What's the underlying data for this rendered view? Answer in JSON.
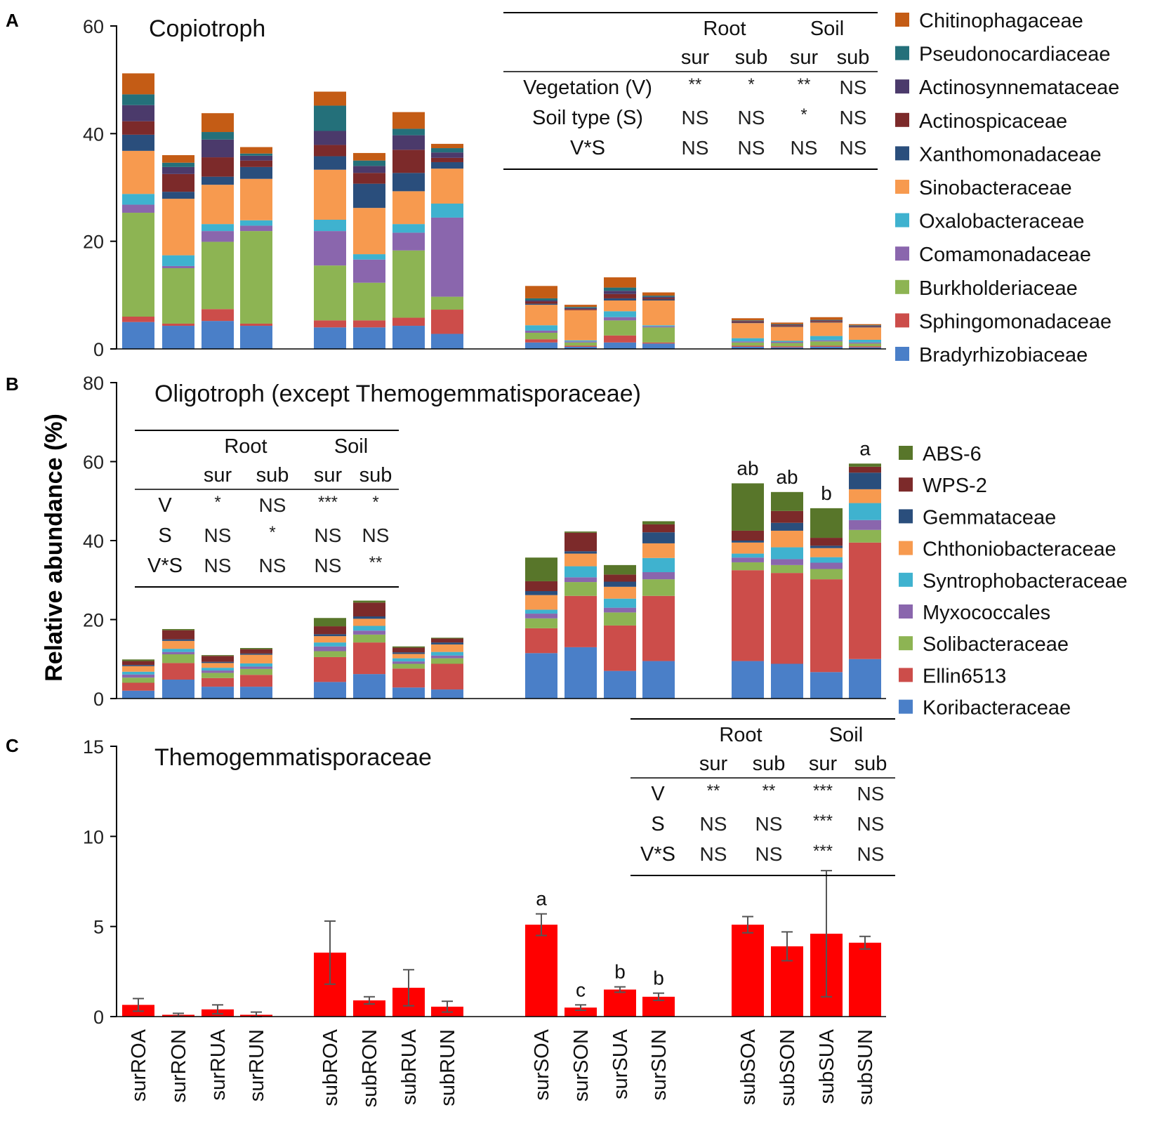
{
  "figure": {
    "ylabel": "Relative abundance (%)"
  },
  "colors": {
    "axis": "#000000",
    "errorbar": "#555555",
    "bar_c": "#ff0000"
  },
  "chart_data": [
    {
      "id": "A",
      "panel_label": "A",
      "type": "bar",
      "stacked": true,
      "title": "Copiotroph",
      "ylim": [
        0,
        60
      ],
      "yticks": [
        0,
        20,
        40,
        60
      ],
      "categories": [
        "surROA",
        "surRON",
        "surRUA",
        "surRUN",
        "subROA",
        "subRON",
        "subRUA",
        "subRUN",
        "surSOA",
        "surSON",
        "surSUA",
        "surSUN",
        "subSOA",
        "subSON",
        "subSUA",
        "subSUN"
      ],
      "series": [
        {
          "name": "Bradyrhizobiaceae",
          "color": "#4a7fc8",
          "values": [
            5,
            4.3,
            5.2,
            4.3,
            4,
            4,
            4.3,
            2.8,
            1.2,
            0.4,
            1.2,
            1,
            0.4,
            0.3,
            0.4,
            0.3
          ]
        },
        {
          "name": "Sphingomonadaceae",
          "color": "#cc4d4a",
          "values": [
            1,
            0.4,
            2.2,
            0.4,
            1.3,
            1.3,
            1.5,
            4.5,
            0.6,
            0.2,
            1.3,
            0.2,
            0.2,
            0.2,
            0.2,
            0.2
          ]
        },
        {
          "name": "Burkholderiaceae",
          "color": "#8db453",
          "values": [
            19.3,
            10.3,
            12.5,
            17.2,
            10.2,
            7,
            12.5,
            2.4,
            1.2,
            0.6,
            2.8,
            2.8,
            0.6,
            0.6,
            0.8,
            0.5
          ]
        },
        {
          "name": "Comamonadaceae",
          "color": "#8a66ad",
          "values": [
            1.5,
            0.4,
            2,
            1,
            6.4,
            4.3,
            3.3,
            14.7,
            0.4,
            0.2,
            0.6,
            0.2,
            0.2,
            0.2,
            0.2,
            0.2
          ]
        },
        {
          "name": "Oxalobacteraceae",
          "color": "#3fb2cf",
          "values": [
            2,
            2,
            1.3,
            1,
            2.1,
            1,
            1.6,
            2.6,
            1,
            0.2,
            1.1,
            0.2,
            0.6,
            0.2,
            0.8,
            0.5
          ]
        },
        {
          "name": "Sinobacteraceae",
          "color": "#f79a4f",
          "values": [
            8,
            10.5,
            7.3,
            7.7,
            9.3,
            8.6,
            6.1,
            6.5,
            3.8,
            5.6,
            2,
            4.6,
            2.8,
            2.6,
            2.5,
            2.3
          ]
        },
        {
          "name": "Xanthomonadaceae",
          "color": "#2a4e7c",
          "values": [
            3,
            1.3,
            1.5,
            2.2,
            2.5,
            4.5,
            3.4,
            1.2,
            0.2,
            0,
            0.4,
            0.2,
            0.1,
            0.1,
            0.1,
            0.1
          ]
        },
        {
          "name": "Actinospicaceae",
          "color": "#7c2a2a",
          "values": [
            2.5,
            3.3,
            3.6,
            1.2,
            2.1,
            2,
            4.3,
            0.8,
            0.4,
            0.2,
            0.8,
            0.3,
            0.2,
            0.2,
            0.2,
            0.1
          ]
        },
        {
          "name": "Actinosynnemataceae",
          "color": "#4b3a6b",
          "values": [
            3,
            1.3,
            3.3,
            0.9,
            2.6,
            1.3,
            2.7,
            1,
            0.2,
            0.2,
            0.6,
            0.2,
            0.1,
            0.1,
            0.1,
            0.1
          ]
        },
        {
          "name": "Pseudonocardiaceae",
          "color": "#24707a",
          "values": [
            2,
            0.8,
            1.4,
            0.4,
            4.7,
            1,
            1.2,
            0.8,
            0.4,
            0.2,
            0.6,
            0.2,
            0.1,
            0.1,
            0.1,
            0.1
          ]
        },
        {
          "name": "Chitinophagaceae",
          "color": "#c45c15",
          "values": [
            3.9,
            1.4,
            3.5,
            1.2,
            2.6,
            1.4,
            3.1,
            0.8,
            2.3,
            0.4,
            1.9,
            0.6,
            0.4,
            0.3,
            0.5,
            0.2
          ]
        }
      ],
      "annotations": [],
      "stats_table": {
        "group_headers": [
          "Root",
          "Soil"
        ],
        "sub_headers": [
          "sur",
          "sub",
          "sur",
          "sub"
        ],
        "rows": [
          {
            "label": "Vegetation (V)",
            "cells": [
              "**",
              "*",
              "**",
              "NS"
            ]
          },
          {
            "label": "Soil type (S)",
            "cells": [
              "NS",
              "NS",
              "*",
              "NS"
            ]
          },
          {
            "label": "V*S",
            "cells": [
              "NS",
              "NS",
              "NS",
              "NS"
            ]
          }
        ]
      }
    },
    {
      "id": "B",
      "panel_label": "B",
      "type": "bar",
      "stacked": true,
      "title": "Oligotroph (except Themogemmatisporaceae)",
      "ylim": [
        0,
        80
      ],
      "yticks": [
        0,
        20,
        40,
        60,
        80
      ],
      "categories": [
        "surROA",
        "surRON",
        "surRUA",
        "surRUN",
        "subROA",
        "subRON",
        "subRUA",
        "subRUN",
        "surSOA",
        "surSON",
        "surSUA",
        "surSUN",
        "subSOA",
        "subSON",
        "subSUA",
        "subSUN"
      ],
      "series": [
        {
          "name": "Koribacteraceae",
          "color": "#4a7fc8",
          "values": [
            2,
            4.8,
            3,
            3,
            4.2,
            6.2,
            2.8,
            2.3,
            11.5,
            13,
            7,
            9.5,
            9.5,
            8.8,
            6.7,
            10
          ]
        },
        {
          "name": "Ellin6513",
          "color": "#cc4d4a",
          "values": [
            2,
            4.2,
            2.2,
            3,
            6.3,
            8,
            4.8,
            6.5,
            6.3,
            13,
            11.5,
            16.5,
            23,
            23,
            23.5,
            29.5
          ]
        },
        {
          "name": "Solibacteraceae",
          "color": "#8db453",
          "values": [
            1.3,
            2.2,
            1.3,
            1.5,
            1.5,
            2,
            1.2,
            1.4,
            2.5,
            3.5,
            3.3,
            4.2,
            2,
            2,
            2.6,
            3.2
          ]
        },
        {
          "name": "Myxococcales",
          "color": "#8a66ad",
          "values": [
            0.8,
            0.6,
            0.6,
            0.6,
            1.2,
            1,
            0.6,
            0.7,
            1.2,
            1.2,
            1.2,
            1.8,
            1.2,
            1.5,
            1.6,
            2.5
          ]
        },
        {
          "name": "Syntrophobacteraceae",
          "color": "#3fb2cf",
          "values": [
            0.7,
            0.8,
            0.7,
            0.8,
            1,
            1.2,
            0.8,
            0.9,
            1,
            2.8,
            2.3,
            3.6,
            1,
            3,
            1.4,
            4.3
          ]
        },
        {
          "name": "Chthoniobacteraceae",
          "color": "#f79a4f",
          "values": [
            1.4,
            2,
            1.2,
            2.2,
            1.6,
            1.8,
            1.1,
            1.9,
            3.7,
            3.2,
            3,
            3.7,
            2.8,
            4.2,
            2.3,
            3.5
          ]
        },
        {
          "name": "Gemmataceae",
          "color": "#2a4e7c",
          "values": [
            0.3,
            0.4,
            0.3,
            0.3,
            0.5,
            0.6,
            0.4,
            0.5,
            1,
            0.6,
            1.3,
            2.8,
            0.5,
            2,
            0.6,
            4.2
          ]
        },
        {
          "name": "WPS-2",
          "color": "#7c2a2a",
          "values": [
            1,
            2.3,
            1.5,
            1.1,
            2,
            3.5,
            1.2,
            1,
            2.5,
            4.7,
            1.8,
            2,
            2.5,
            3,
            2,
            1.5
          ]
        },
        {
          "name": "ABS-6",
          "color": "#58762a",
          "values": [
            0.4,
            0.3,
            0.2,
            0.3,
            2.1,
            0.5,
            0.3,
            0.2,
            6,
            0.3,
            2.4,
            0.8,
            12,
            4.8,
            7.5,
            0.8
          ]
        }
      ],
      "annotations": [
        {
          "category": "subSOA",
          "text": "ab"
        },
        {
          "category": "subSON",
          "text": "ab"
        },
        {
          "category": "subSUA",
          "text": "b"
        },
        {
          "category": "subSUN",
          "text": "a"
        }
      ],
      "stats_table": {
        "group_headers": [
          "Root",
          "Soil"
        ],
        "sub_headers": [
          "sur",
          "sub",
          "sur",
          "sub"
        ],
        "rows": [
          {
            "label": "V",
            "cells": [
              "*",
              "NS",
              "***",
              "*"
            ]
          },
          {
            "label": "S",
            "cells": [
              "NS",
              "*",
              "NS",
              "NS"
            ]
          },
          {
            "label": "V*S",
            "cells": [
              "NS",
              "NS",
              "NS",
              "**"
            ]
          }
        ]
      }
    },
    {
      "id": "C",
      "panel_label": "C",
      "type": "bar",
      "stacked": false,
      "title": "Themogemmatisporaceae",
      "ylim": [
        0,
        15
      ],
      "yticks": [
        0,
        5,
        10,
        15
      ],
      "categories": [
        "surROA",
        "surRON",
        "surRUA",
        "surRUN",
        "subROA",
        "subRON",
        "subRUA",
        "subRUN",
        "surSOA",
        "surSON",
        "surSUA",
        "surSUN",
        "subSOA",
        "subSON",
        "subSUA",
        "subSUN"
      ],
      "values": [
        0.65,
        0.1,
        0.4,
        0.1,
        3.55,
        0.9,
        1.6,
        0.55,
        5.1,
        0.5,
        1.5,
        1.1,
        5.1,
        3.9,
        4.6,
        4.1
      ],
      "errors": [
        0.35,
        0.08,
        0.25,
        0.15,
        1.75,
        0.2,
        1,
        0.3,
        0.6,
        0.15,
        0.15,
        0.2,
        0.45,
        0.8,
        3.5,
        0.35
      ],
      "annotations": [
        {
          "category": "surSOA",
          "text": "a"
        },
        {
          "category": "surSON",
          "text": "c"
        },
        {
          "category": "surSUA",
          "text": "b"
        },
        {
          "category": "surSUN",
          "text": "b"
        }
      ],
      "stats_table": {
        "group_headers": [
          "Root",
          "Soil"
        ],
        "sub_headers": [
          "sur",
          "sub",
          "sur",
          "sub"
        ],
        "rows": [
          {
            "label": "V",
            "cells": [
              "**",
              "**",
              "***",
              "NS"
            ]
          },
          {
            "label": "S",
            "cells": [
              "NS",
              "NS",
              "***",
              "NS"
            ]
          },
          {
            "label": "V*S",
            "cells": [
              "NS",
              "NS",
              "***",
              "NS"
            ]
          }
        ]
      }
    }
  ]
}
